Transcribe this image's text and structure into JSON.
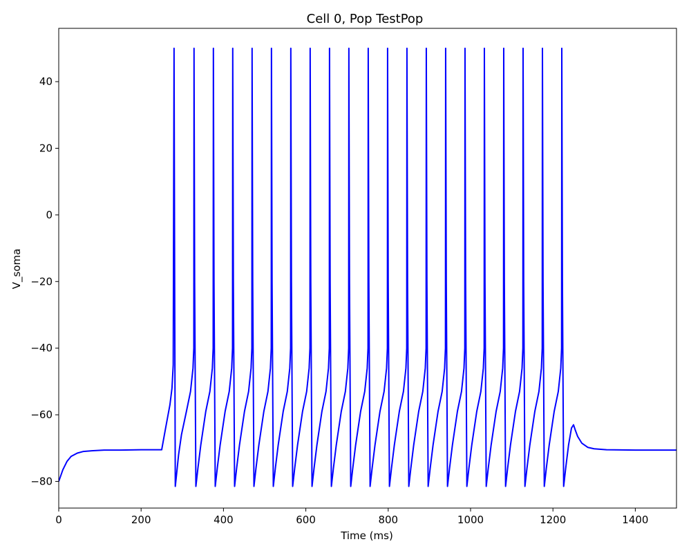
{
  "chart_data": {
    "type": "line",
    "title": "Cell 0, Pop TestPop",
    "xlabel": "Time (ms)",
    "ylabel": "V_soma",
    "xlim": [
      0,
      1500
    ],
    "ylim": [
      -88,
      56
    ],
    "xticks": [
      0,
      200,
      400,
      600,
      800,
      1000,
      1200,
      1400
    ],
    "yticks": [
      -80,
      -60,
      -40,
      -20,
      0,
      20,
      40
    ],
    "xtick_labels": [
      "0",
      "200",
      "400",
      "600",
      "800",
      "1000",
      "1200",
      "1400"
    ],
    "ytick_labels": [
      "−80",
      "−60",
      "−40",
      "−20",
      "0",
      "20",
      "40"
    ],
    "grid": false,
    "line_color": "#0000ff",
    "series": [
      {
        "x": [
          0,
          10,
          20,
          30,
          45,
          60,
          80,
          110,
          150,
          200,
          250,
          258,
          264,
          270,
          275,
          278,
          280,
          281.5,
          283,
          286,
          291,
          298,
          310,
          320,
          326,
          328,
          328.5,
          330,
          333,
          338,
          345,
          357,
          367,
          373,
          375,
          375.5,
          377,
          380,
          385,
          392,
          404,
          414,
          420,
          422,
          422.5,
          424,
          427,
          432,
          439,
          451,
          461,
          467,
          469,
          469.5,
          471,
          474,
          479,
          486,
          498,
          508,
          514,
          516,
          516.5,
          518,
          521,
          526,
          533,
          545,
          555,
          561,
          563,
          563.5,
          565,
          568,
          573,
          580,
          592,
          602,
          608,
          610,
          610.5,
          612,
          615,
          620,
          627,
          639,
          649,
          655,
          657,
          657.5,
          659,
          662,
          667,
          674,
          686,
          696,
          702,
          704,
          704.5,
          706,
          709,
          714,
          721,
          733,
          743,
          749,
          751,
          751.5,
          753,
          756,
          761,
          768,
          780,
          790,
          796,
          798,
          798.5,
          800,
          803,
          808,
          815,
          827,
          837,
          843,
          845,
          845.5,
          847,
          850,
          855,
          862,
          874,
          884,
          890,
          892,
          892.5,
          894,
          897,
          902,
          909,
          921,
          931,
          937,
          939,
          939.5,
          941,
          944,
          949,
          956,
          968,
          978,
          984,
          986,
          986.5,
          988,
          991,
          996,
          1003,
          1015,
          1025,
          1031,
          1033,
          1033.5,
          1035,
          1038,
          1043,
          1050,
          1062,
          1072,
          1078,
          1080,
          1080.5,
          1082,
          1085,
          1090,
          1097,
          1109,
          1119,
          1125,
          1127,
          1127.5,
          1129,
          1132,
          1137,
          1144,
          1156,
          1166,
          1172,
          1174,
          1174.5,
          1176,
          1179,
          1184,
          1191,
          1203,
          1213,
          1219,
          1221,
          1221.5,
          1223,
          1226,
          1231,
          1238,
          1245,
          1250,
          1254,
          1260,
          1270,
          1285,
          1300,
          1330,
          1400,
          1500
        ],
        "y": [
          -80,
          -76.5,
          -74,
          -72.5,
          -71.5,
          -71,
          -70.8,
          -70.6,
          -70.6,
          -70.5,
          -70.5,
          -65,
          -61,
          -57,
          -52,
          -45,
          50,
          -20,
          -81.5,
          -78,
          -72,
          -66,
          -59,
          -53,
          -46,
          -40,
          50,
          -20,
          -81.5,
          -76,
          -69,
          -59,
          -53,
          -46,
          -40,
          50,
          -20,
          -81.5,
          -76,
          -69,
          -59,
          -53,
          -46,
          -40,
          50,
          -20,
          -81.5,
          -76,
          -69,
          -59,
          -53,
          -46,
          -40,
          50,
          -20,
          -81.5,
          -76,
          -69,
          -59,
          -53,
          -46,
          -40,
          50,
          -20,
          -81.5,
          -76,
          -69,
          -59,
          -53,
          -46,
          -40,
          50,
          -20,
          -81.5,
          -76,
          -69,
          -59,
          -53,
          -46,
          -40,
          50,
          -20,
          -81.5,
          -76,
          -69,
          -59,
          -53,
          -46,
          -40,
          50,
          -20,
          -81.5,
          -76,
          -69,
          -59,
          -53,
          -46,
          -40,
          50,
          -20,
          -81.5,
          -76,
          -69,
          -59,
          -53,
          -46,
          -40,
          50,
          -20,
          -81.5,
          -76,
          -69,
          -59,
          -53,
          -46,
          -40,
          50,
          -20,
          -81.5,
          -76,
          -69,
          -59,
          -53,
          -46,
          -40,
          50,
          -20,
          -81.5,
          -76,
          -69,
          -59,
          -53,
          -46,
          -40,
          50,
          -20,
          -81.5,
          -76,
          -69,
          -59,
          -53,
          -46,
          -40,
          50,
          -20,
          -81.5,
          -76,
          -69,
          -59,
          -53,
          -46,
          -40,
          50,
          -20,
          -81.5,
          -76,
          -69,
          -59,
          -53,
          -46,
          -40,
          50,
          -20,
          -81.5,
          -76,
          -69,
          -59,
          -53,
          -46,
          -40,
          50,
          -20,
          -81.5,
          -76,
          -69,
          -59,
          -53,
          -46,
          -40,
          50,
          -20,
          -81.5,
          -76,
          -69,
          -59,
          -53,
          -46,
          -40,
          50,
          -20,
          -81.5,
          -76,
          -69,
          -59,
          -53,
          -46,
          -40,
          50,
          -20,
          -81.5,
          -76,
          -69,
          -64,
          -63,
          -64.5,
          -66.5,
          -68.5,
          -69.8,
          -70.2,
          -70.5,
          -70.6,
          -70.6
        ]
      }
    ]
  }
}
